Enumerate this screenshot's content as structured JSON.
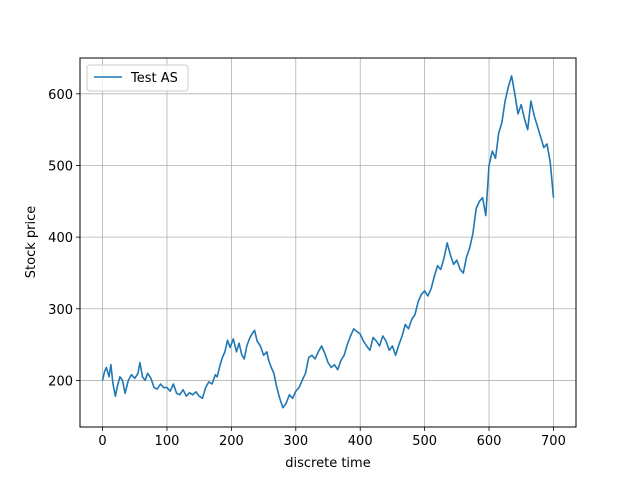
{
  "chart_data": {
    "type": "line",
    "title": "",
    "xlabel": "discrete time",
    "ylabel": "Stock price",
    "xlim": [
      -35,
      735
    ],
    "ylim": [
      135,
      650
    ],
    "xticks": [
      0,
      100,
      200,
      300,
      400,
      500,
      600,
      700
    ],
    "yticks": [
      200,
      300,
      400,
      500,
      600
    ],
    "grid": true,
    "legend_position": "top-left",
    "line_color": "#1f77b4",
    "series": [
      {
        "name": "Test AS",
        "x": [
          0,
          3,
          6,
          10,
          13,
          16,
          20,
          23,
          27,
          31,
          35,
          40,
          45,
          50,
          55,
          58,
          62,
          66,
          70,
          75,
          80,
          85,
          90,
          95,
          100,
          105,
          110,
          115,
          120,
          125,
          130,
          135,
          140,
          145,
          150,
          155,
          160,
          165,
          170,
          175,
          178,
          182,
          186,
          190,
          194,
          198,
          203,
          208,
          212,
          216,
          220,
          224,
          228,
          232,
          236,
          240,
          245,
          250,
          255,
          258,
          262,
          266,
          270,
          275,
          280,
          285,
          290,
          295,
          300,
          305,
          310,
          315,
          320,
          325,
          330,
          335,
          340,
          345,
          350,
          355,
          360,
          365,
          370,
          375,
          380,
          385,
          390,
          395,
          400,
          405,
          410,
          415,
          420,
          425,
          430,
          435,
          440,
          445,
          450,
          455,
          460,
          465,
          470,
          475,
          480,
          485,
          490,
          495,
          500,
          505,
          510,
          515,
          520,
          525,
          530,
          535,
          540,
          545,
          550,
          555,
          560,
          565,
          570,
          575,
          580,
          585,
          590,
          595,
          600,
          605,
          610,
          615,
          620,
          625,
          630,
          635,
          640,
          645,
          650,
          655,
          660,
          665,
          670,
          675,
          680,
          685,
          690,
          695,
          700
        ],
        "values": [
          200,
          212,
          218,
          205,
          222,
          196,
          178,
          192,
          205,
          200,
          182,
          200,
          208,
          203,
          210,
          225,
          205,
          200,
          210,
          203,
          190,
          188,
          195,
          190,
          190,
          185,
          195,
          182,
          180,
          187,
          178,
          183,
          180,
          184,
          178,
          175,
          190,
          198,
          195,
          208,
          205,
          220,
          232,
          240,
          256,
          246,
          258,
          240,
          252,
          236,
          230,
          248,
          258,
          265,
          270,
          255,
          248,
          235,
          240,
          228,
          218,
          210,
          192,
          175,
          162,
          168,
          180,
          175,
          185,
          190,
          200,
          210,
          232,
          235,
          230,
          240,
          248,
          238,
          225,
          218,
          222,
          215,
          228,
          235,
          250,
          262,
          272,
          268,
          265,
          255,
          248,
          242,
          260,
          255,
          248,
          262,
          255,
          242,
          248,
          235,
          250,
          262,
          278,
          272,
          285,
          292,
          310,
          320,
          325,
          318,
          328,
          345,
          360,
          355,
          370,
          392,
          375,
          362,
          368,
          355,
          350,
          372,
          385,
          405,
          440,
          450,
          455,
          430,
          500,
          520,
          510,
          545,
          560,
          590,
          610,
          625,
          600,
          572,
          585,
          565,
          550,
          590,
          570,
          555,
          540,
          525,
          530,
          505,
          455
        ]
      }
    ]
  }
}
